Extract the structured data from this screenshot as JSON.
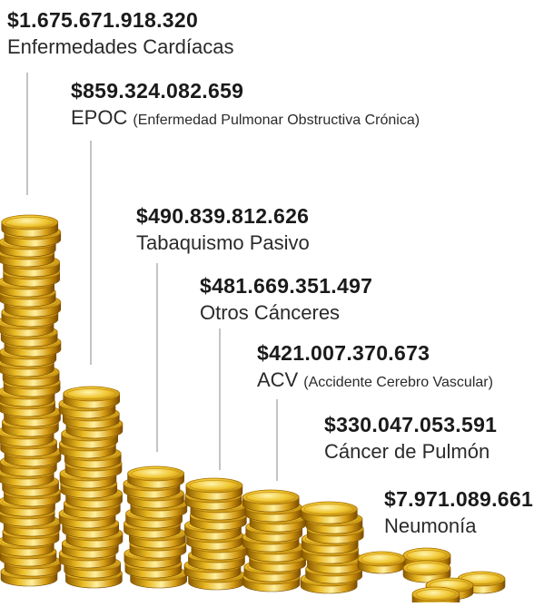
{
  "items": [
    {
      "amount": "$1.675.671.918.320",
      "label": "Enfermedades Cardíacas"
    },
    {
      "amount": "$859.324.082.659",
      "label": "EPOC",
      "note": "(Enfermedad Pulmonar Obstructiva Crónica)"
    },
    {
      "amount": "$490.839.812.626",
      "label": "Tabaquismo Pasivo"
    },
    {
      "amount": "$481.669.351.497",
      "label": "Otros Cánceres"
    },
    {
      "amount": "$421.007.370.673",
      "label": "ACV",
      "note": "(Accidente Cerebro Vascular)"
    },
    {
      "amount": "$330.047.053.591",
      "label": "Cáncer de Pulmón"
    },
    {
      "amount": "$7.971.089.661",
      "label": "Neumonía"
    }
  ]
}
